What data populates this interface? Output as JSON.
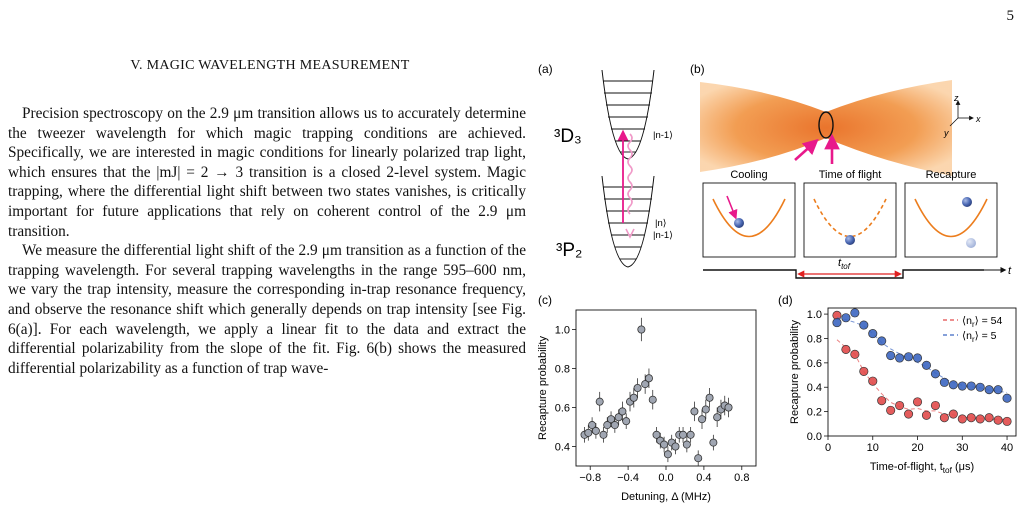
{
  "page_number": "5",
  "section": {
    "title": "V.   MAGIC WAVELENGTH MEASUREMENT"
  },
  "paragraphs": [
    "Precision spectroscopy on the 2.9 μm transition allows us to accurately determine the tweezer wavelength for which magic trapping conditions are achieved. Specifically, we are interested in magic conditions for linearly polarized trap light, which ensures that the |m_J| = 2 → 3 transition is a closed 2-level system. Magic trapping, where the differential light shift between two states vanishes, is critically important for future applications that rely on coherent control of the 2.9 μm transition.",
    "We measure the differential light shift of the 2.9 μm transition as a function of the trapping wavelength. For several trapping wavelengths in the range 595–600 nm, we vary the trap intensity, measure the corresponding in-trap resonance frequency, and observe the resonance shift which generally depends on trap intensity [see Fig. 6(a)]. For each wavelength, we apply a linear fit to the data and extract the differential polarizability from the slope of the fit. Fig. 6(b) shows the measured differential polarizability as a function of trap wave-"
  ],
  "figure": {
    "panel_labels": [
      "(a)",
      "(b)",
      "(c)",
      "(d)"
    ],
    "level_upper": "³D₃",
    "level_lower": "³P₂",
    "ket_upper": "|n-1⟩",
    "ket_lower_n": "|n⟩",
    "ket_lower_n1": "|n-1⟩",
    "axes_labels": {
      "z": "z",
      "y": "y",
      "x": "x"
    },
    "boxes": [
      "Cooling",
      "Time of flight",
      "Recapture"
    ],
    "ttof_label": "t",
    "ttof_sub": "tof",
    "time_arrow_label": "t",
    "colors": {
      "orange": "#ec7d1d",
      "magenta": "#e8198b",
      "red_arrow": "#e02020",
      "blue_dot": "#4a68b4",
      "light_dot": "#9fb0d8"
    }
  },
  "chart_data": [
    {
      "panel": "(c)",
      "type": "scatter",
      "xlabel": "Detuning, Δ (MHz)",
      "ylabel": "Recapture probability",
      "xlim": [
        -0.95,
        0.95
      ],
      "ylim": [
        0.3,
        1.1
      ],
      "xticks": [
        "−0.8",
        "−0.4",
        "0.0",
        "0.4",
        "0.8"
      ],
      "xtick_values": [
        -0.8,
        -0.4,
        0.0,
        0.4,
        0.8
      ],
      "yticks": [
        "0.4",
        "0.6",
        "0.8",
        "1.0"
      ],
      "ytick_values": [
        0.4,
        0.6,
        0.8,
        1.0
      ],
      "marker_color": "#a0a6b2",
      "points": [
        [
          -0.86,
          0.46,
          0.04
        ],
        [
          -0.82,
          0.47,
          0.04
        ],
        [
          -0.78,
          0.51,
          0.04
        ],
        [
          -0.74,
          0.48,
          0.04
        ],
        [
          -0.7,
          0.63,
          0.05
        ],
        [
          -0.66,
          0.46,
          0.04
        ],
        [
          -0.62,
          0.51,
          0.04
        ],
        [
          -0.58,
          0.54,
          0.04
        ],
        [
          -0.54,
          0.51,
          0.04
        ],
        [
          -0.5,
          0.55,
          0.04
        ],
        [
          -0.46,
          0.58,
          0.05
        ],
        [
          -0.42,
          0.53,
          0.04
        ],
        [
          -0.38,
          0.63,
          0.05
        ],
        [
          -0.34,
          0.65,
          0.05
        ],
        [
          -0.3,
          0.7,
          0.05
        ],
        [
          -0.26,
          1.0,
          0.06
        ],
        [
          -0.22,
          0.72,
          0.05
        ],
        [
          -0.18,
          0.75,
          0.05
        ],
        [
          -0.14,
          0.64,
          0.05
        ],
        [
          -0.1,
          0.46,
          0.04
        ],
        [
          -0.06,
          0.43,
          0.04
        ],
        [
          -0.02,
          0.41,
          0.04
        ],
        [
          0.02,
          0.36,
          0.04
        ],
        [
          0.06,
          0.42,
          0.04
        ],
        [
          0.1,
          0.4,
          0.04
        ],
        [
          0.14,
          0.46,
          0.04
        ],
        [
          0.18,
          0.46,
          0.04
        ],
        [
          0.22,
          0.41,
          0.04
        ],
        [
          0.26,
          0.46,
          0.04
        ],
        [
          0.3,
          0.58,
          0.05
        ],
        [
          0.34,
          0.34,
          0.04
        ],
        [
          0.38,
          0.54,
          0.05
        ],
        [
          0.42,
          0.59,
          0.05
        ],
        [
          0.46,
          0.65,
          0.05
        ],
        [
          0.5,
          0.42,
          0.04
        ],
        [
          0.54,
          0.55,
          0.05
        ],
        [
          0.58,
          0.59,
          0.05
        ],
        [
          0.62,
          0.61,
          0.05
        ],
        [
          0.66,
          0.6,
          0.05
        ]
      ]
    },
    {
      "panel": "(d)",
      "type": "scatter",
      "xlabel": "Time-of-flight, t_tof (μs)",
      "ylabel": "Recapture probability",
      "xlim": [
        0,
        42
      ],
      "ylim": [
        0,
        1.05
      ],
      "xticks": [
        "0",
        "10",
        "20",
        "30",
        "40"
      ],
      "xtick_values": [
        0,
        10,
        20,
        30,
        40
      ],
      "yticks": [
        "0.0",
        "0.2",
        "0.4",
        "0.6",
        "0.8",
        "1.0"
      ],
      "ytick_values": [
        0,
        0.2,
        0.4,
        0.6,
        0.8,
        1.0
      ],
      "series": [
        {
          "name": "⟨n_r⟩ = 54",
          "color": "#e24b4b",
          "x": [
            2,
            4,
            6,
            8,
            10,
            12,
            14,
            16,
            18,
            20,
            22,
            24,
            26,
            28,
            30,
            32,
            34,
            36,
            38,
            40
          ],
          "y": [
            0.99,
            0.71,
            0.67,
            0.53,
            0.45,
            0.29,
            0.21,
            0.25,
            0.18,
            0.28,
            0.17,
            0.25,
            0.15,
            0.18,
            0.14,
            0.15,
            0.14,
            0.15,
            0.13,
            0.12
          ]
        },
        {
          "name": "⟨n_r⟩ = 5",
          "color": "#3c67c2",
          "x": [
            2,
            4,
            6,
            8,
            10,
            12,
            14,
            16,
            18,
            20,
            22,
            24,
            26,
            28,
            30,
            32,
            34,
            36,
            38,
            40
          ],
          "y": [
            0.93,
            0.97,
            1.01,
            0.91,
            0.84,
            0.78,
            0.66,
            0.64,
            0.65,
            0.64,
            0.58,
            0.51,
            0.44,
            0.42,
            0.41,
            0.41,
            0.4,
            0.38,
            0.38,
            0.31
          ]
        }
      ]
    }
  ]
}
